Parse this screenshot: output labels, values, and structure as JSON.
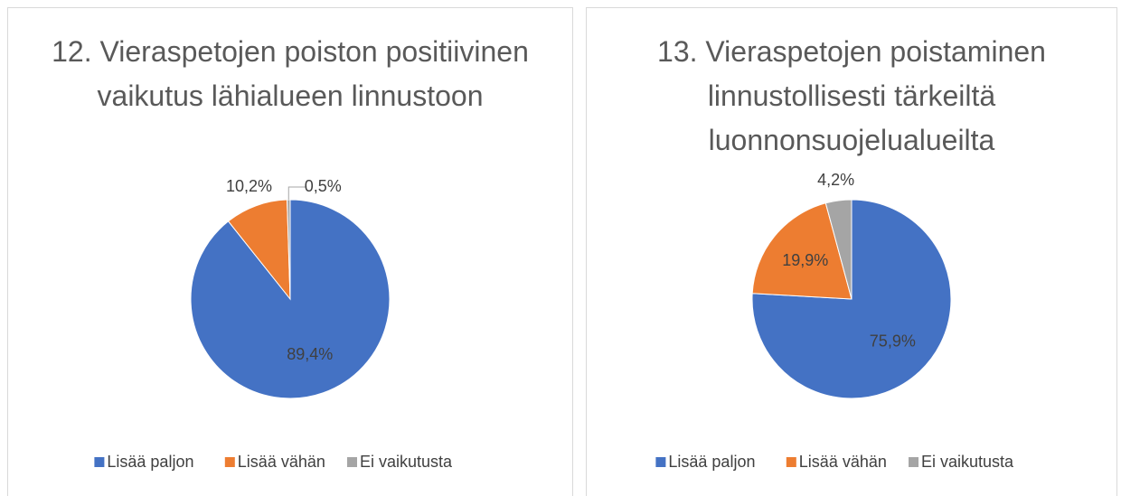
{
  "chart_data": [
    {
      "type": "pie",
      "title": "12. Vieraspetojen poiston positiivinen vaikutus lähialueen linnustoon",
      "categories": [
        "Lisää paljon",
        "Lisää vähän",
        "Ei vaikutusta"
      ],
      "values": [
        89.4,
        10.2,
        0.5
      ],
      "value_labels": [
        "89,4%",
        "10,2%",
        "0,5%"
      ],
      "colors": [
        "#4472c4",
        "#ed7d31",
        "#a5a5a5"
      ],
      "legend": "bottom"
    },
    {
      "type": "pie",
      "title": "13. Vieraspetojen poistaminen linnustollisesti tärkeiltä luonnonsuojelualueilta",
      "categories": [
        "Lisää paljon",
        "Lisää vähän",
        "Ei vaikutusta"
      ],
      "values": [
        75.9,
        19.9,
        4.2
      ],
      "value_labels": [
        "75,9%",
        "19,9%",
        "4,2%"
      ],
      "colors": [
        "#4472c4",
        "#ed7d31",
        "#a5a5a5"
      ],
      "legend": "bottom"
    }
  ]
}
